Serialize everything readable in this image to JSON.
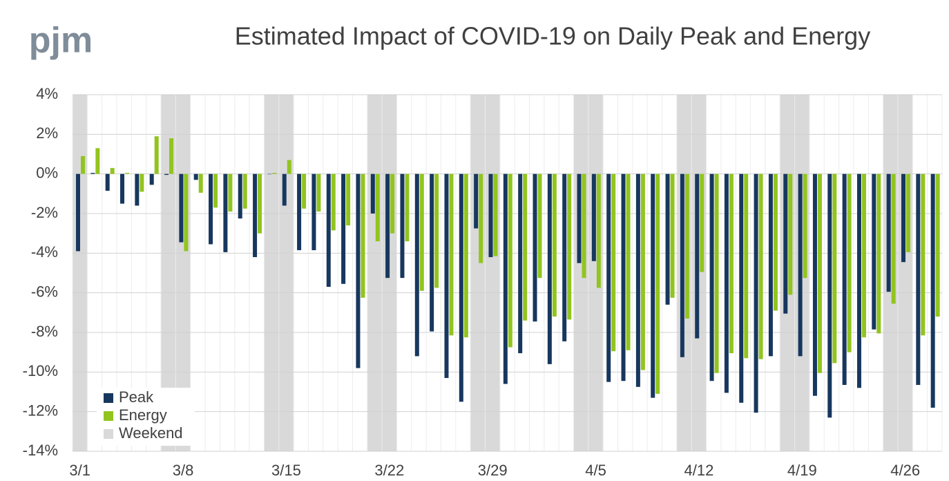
{
  "header": {
    "logo": "pjm"
  },
  "chart_data": {
    "type": "bar",
    "title": "Estimated Impact of COVID-19 on Daily Peak and Energy",
    "categories": [
      "3/1",
      null,
      null,
      null,
      null,
      null,
      null,
      "3/8",
      null,
      null,
      null,
      null,
      null,
      null,
      "3/15",
      null,
      null,
      null,
      null,
      null,
      null,
      "3/22",
      null,
      null,
      null,
      null,
      null,
      null,
      "3/29",
      null,
      null,
      null,
      null,
      null,
      null,
      "4/5",
      null,
      null,
      null,
      null,
      null,
      null,
      "4/12",
      null,
      null,
      null,
      null,
      null,
      null,
      "4/19",
      null,
      null,
      null,
      null,
      null,
      null,
      "4/26",
      null,
      null
    ],
    "series": [
      {
        "name": "Peak",
        "color": "#17375e",
        "values": [
          -3.9,
          0.05,
          -0.85,
          -1.5,
          -1.6,
          -0.55,
          -0.05,
          -3.45,
          -0.3,
          -3.55,
          -3.95,
          -2.25,
          -4.2,
          0,
          -1.6,
          -3.85,
          -3.85,
          -5.7,
          -5.55,
          -9.8,
          -2.0,
          -5.25,
          -5.25,
          -9.2,
          -7.95,
          -10.3,
          -11.5,
          -2.75,
          -4.2,
          -10.6,
          -9.05,
          -7.45,
          -9.6,
          -8.45,
          -4.5,
          -4.4,
          -10.5,
          -10.45,
          -10.75,
          -11.3,
          -6.6,
          -9.25,
          -8.3,
          -10.45,
          -11.05,
          -11.55,
          -12.05,
          -9.2,
          -7.05,
          -9.2,
          -11.2,
          -12.3,
          -10.65,
          -10.8,
          -7.85,
          -5.95,
          -4.45,
          -10.65,
          -11.8
        ]
      },
      {
        "name": "Energy",
        "color": "#92c41f",
        "values": [
          0.9,
          1.3,
          0.3,
          0.05,
          -0.9,
          1.9,
          1.8,
          -3.9,
          -0.95,
          -1.7,
          -1.9,
          -1.75,
          -3.0,
          0.05,
          0.7,
          -1.75,
          -1.9,
          -2.85,
          -2.6,
          -6.25,
          -3.4,
          -3.0,
          -3.4,
          -5.9,
          -5.75,
          -8.15,
          -8.25,
          -4.5,
          -4.15,
          -8.75,
          -7.4,
          -5.25,
          -7.2,
          -7.35,
          -5.25,
          -5.75,
          -8.95,
          -8.9,
          -9.9,
          -11.1,
          -6.25,
          -7.3,
          -4.95,
          -10.05,
          -9.05,
          -9.3,
          -9.35,
          -6.9,
          -6.1,
          -5.25,
          -10.05,
          -9.55,
          -9.0,
          -8.25,
          -8.05,
          -6.55,
          -3.95,
          -8.15,
          -7.2
        ]
      }
    ],
    "highlight": {
      "name": "Weekend",
      "color": "#d9d9d9",
      "indices": [
        0,
        6,
        7,
        13,
        14,
        20,
        21,
        27,
        28,
        34,
        35,
        41,
        42,
        48,
        49,
        55,
        56
      ]
    },
    "ylim": [
      -14,
      4
    ],
    "yticks": [
      {
        "value": 4,
        "label": "4%"
      },
      {
        "value": 2,
        "label": "2%"
      },
      {
        "value": 0,
        "label": "0%"
      },
      {
        "value": -2,
        "label": "-2%"
      },
      {
        "value": -4,
        "label": "-4%"
      },
      {
        "value": -6,
        "label": "-6%"
      },
      {
        "value": -8,
        "label": "-8%"
      },
      {
        "value": -10,
        "label": "-10%"
      },
      {
        "value": -12,
        "label": "-12%"
      },
      {
        "value": -14,
        "label": "-14%"
      }
    ],
    "grid": true,
    "legend": "bottom-left"
  }
}
